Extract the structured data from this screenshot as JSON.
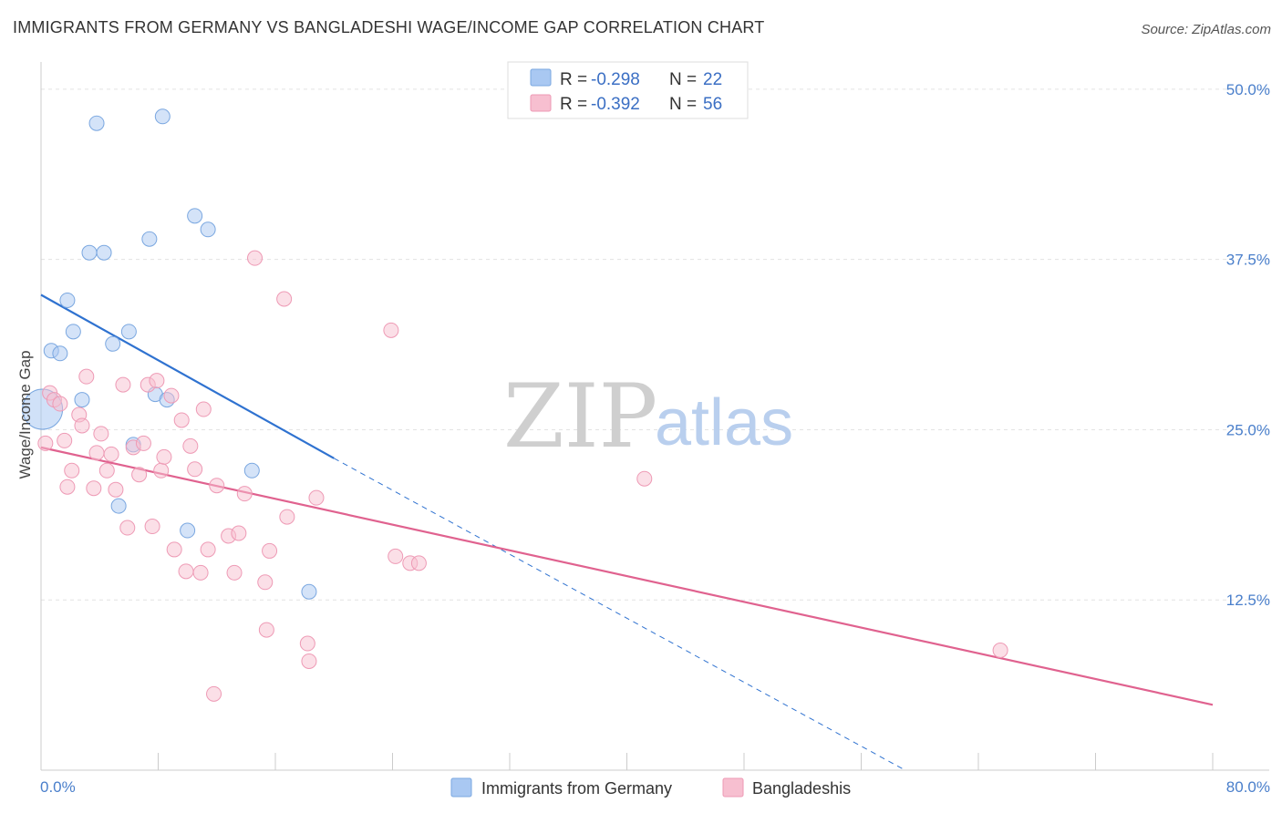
{
  "title": "IMMIGRANTS FROM GERMANY VS BANGLADESHI WAGE/INCOME GAP CORRELATION CHART",
  "source": "Source: ZipAtlas.com",
  "colors": {
    "blue": "#a9c8f2",
    "blue_stroke": "#7aa7e0",
    "blue_line": "#2f72d0",
    "pink": "#f7bfd0",
    "pink_stroke": "#ee9ab5",
    "pink_line": "#e0628f",
    "grid": "#e3e3e3",
    "tick_text": "#4a7fcb"
  },
  "legend": {
    "rows": [
      {
        "r_label": "R =",
        "r_value": "-0.298",
        "n_label": "N =",
        "n_value": "22"
      },
      {
        "r_label": "R =",
        "r_value": "-0.392",
        "n_label": "N =",
        "n_value": "56"
      }
    ]
  },
  "watermark": {
    "zip": "ZIP",
    "atlas": "atlas"
  },
  "chart_data": {
    "type": "scatter",
    "xlabel": "",
    "ylabel": "Wage/Income Gap",
    "xlim": [
      0,
      80
    ],
    "ylim": [
      0,
      52
    ],
    "x_tick_labels": [
      "0.0%",
      "80.0%"
    ],
    "y_ticks": [
      12.5,
      25.0,
      37.5,
      50.0
    ],
    "y_tick_labels": [
      "12.5%",
      "25.0%",
      "37.5%",
      "50.0%"
    ],
    "grid": "horizontal dashed",
    "legend_position": "top-center",
    "series": [
      {
        "name": "Immigrants from Germany",
        "color": "blue",
        "points": [
          [
            0.1,
            26.5
          ],
          [
            3.8,
            47.5
          ],
          [
            8.3,
            48.0
          ],
          [
            10.5,
            40.7
          ],
          [
            11.4,
            39.7
          ],
          [
            7.4,
            39.0
          ],
          [
            3.3,
            38.0
          ],
          [
            4.3,
            38.0
          ],
          [
            1.8,
            34.5
          ],
          [
            2.2,
            32.2
          ],
          [
            6.0,
            32.2
          ],
          [
            4.9,
            31.3
          ],
          [
            0.7,
            30.8
          ],
          [
            1.3,
            30.6
          ],
          [
            7.8,
            27.6
          ],
          [
            2.8,
            27.2
          ],
          [
            8.6,
            27.2
          ],
          [
            6.3,
            23.9
          ],
          [
            14.4,
            22.0
          ],
          [
            5.3,
            19.4
          ],
          [
            10.0,
            17.6
          ],
          [
            18.3,
            13.1
          ]
        ],
        "trend": {
          "x0": 0,
          "y0": 34.9,
          "x1": 20,
          "y1": 22.9,
          "dashed_to_x": 59,
          "dashed_to_y": 0
        }
      },
      {
        "name": "Bangladeshis",
        "color": "pink",
        "points": [
          [
            0.3,
            24.0
          ],
          [
            0.6,
            27.7
          ],
          [
            0.9,
            27.2
          ],
          [
            1.3,
            26.9
          ],
          [
            1.6,
            24.2
          ],
          [
            1.8,
            20.8
          ],
          [
            2.1,
            22.0
          ],
          [
            2.6,
            26.1
          ],
          [
            2.8,
            25.3
          ],
          [
            3.1,
            28.9
          ],
          [
            3.6,
            20.7
          ],
          [
            3.8,
            23.3
          ],
          [
            4.1,
            24.7
          ],
          [
            4.5,
            22.0
          ],
          [
            4.8,
            23.2
          ],
          [
            5.1,
            20.6
          ],
          [
            5.6,
            28.3
          ],
          [
            5.9,
            17.8
          ],
          [
            6.3,
            23.7
          ],
          [
            6.7,
            21.7
          ],
          [
            7.0,
            24.0
          ],
          [
            7.3,
            28.3
          ],
          [
            7.6,
            17.9
          ],
          [
            7.9,
            28.6
          ],
          [
            8.2,
            22.0
          ],
          [
            8.4,
            23.0
          ],
          [
            8.9,
            27.5
          ],
          [
            9.1,
            16.2
          ],
          [
            9.6,
            25.7
          ],
          [
            9.9,
            14.6
          ],
          [
            10.2,
            23.8
          ],
          [
            10.5,
            22.1
          ],
          [
            10.9,
            14.5
          ],
          [
            11.1,
            26.5
          ],
          [
            11.4,
            16.2
          ],
          [
            12.0,
            20.9
          ],
          [
            12.8,
            17.2
          ],
          [
            13.2,
            14.5
          ],
          [
            13.5,
            17.4
          ],
          [
            13.9,
            20.3
          ],
          [
            14.6,
            37.6
          ],
          [
            15.3,
            13.8
          ],
          [
            15.4,
            10.3
          ],
          [
            15.6,
            16.1
          ],
          [
            16.6,
            34.6
          ],
          [
            16.8,
            18.6
          ],
          [
            18.2,
            9.3
          ],
          [
            18.3,
            8.0
          ],
          [
            18.8,
            20.0
          ],
          [
            23.9,
            32.3
          ],
          [
            24.2,
            15.7
          ],
          [
            25.2,
            15.2
          ],
          [
            25.8,
            15.2
          ],
          [
            11.8,
            5.6
          ],
          [
            41.2,
            21.4
          ],
          [
            65.5,
            8.8
          ]
        ],
        "trend": {
          "x0": 0,
          "y0": 23.7,
          "x1": 80,
          "y1": 4.8
        }
      }
    ]
  },
  "bottom_legend": [
    {
      "label": "Immigrants from Germany",
      "color": "blue"
    },
    {
      "label": "Bangladeshis",
      "color": "pink"
    }
  ]
}
